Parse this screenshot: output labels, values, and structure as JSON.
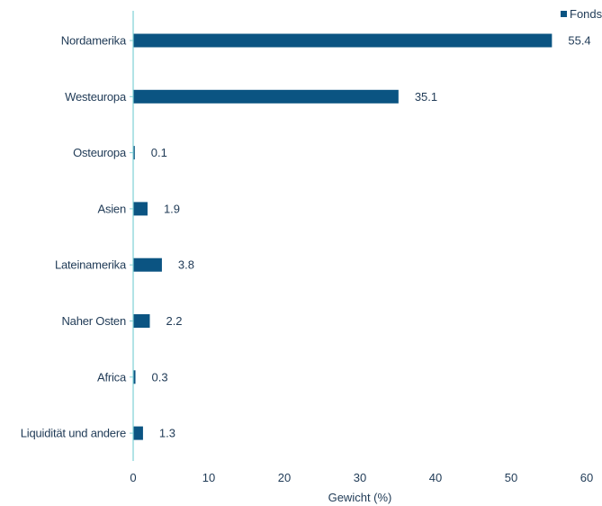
{
  "chart_data": {
    "type": "bar",
    "orientation": "horizontal",
    "categories": [
      "Nordamerika",
      "Westeuropa",
      "Osteuropa",
      "Asien",
      "Lateinamerika",
      "Naher Osten",
      "Africa",
      "Liquidität und andere"
    ],
    "series": [
      {
        "name": "Fonds",
        "color": "#0b5482",
        "values": [
          55.4,
          35.1,
          0.1,
          1.9,
          3.8,
          2.2,
          0.3,
          1.3
        ]
      }
    ],
    "value_labels": [
      "55.4",
      "35.1",
      "0.1",
      "1.9",
      "3.8",
      "2.2",
      "0.3",
      "1.3"
    ],
    "title": "",
    "xlabel": "Gewicht (%)",
    "ylabel": "",
    "xlim": [
      0,
      60
    ],
    "xticks": [
      "0",
      "10",
      "20",
      "30",
      "40",
      "50",
      "60"
    ],
    "grid": false,
    "legend": "top-right",
    "axis_color": "#7fd0d6"
  }
}
